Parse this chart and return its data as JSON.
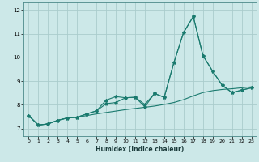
{
  "title": "",
  "xlabel": "Humidex (Indice chaleur)",
  "ylabel": "",
  "background_color": "#cce8e8",
  "grid_color": "#aacccc",
  "line_color": "#1a7a6e",
  "xlim": [
    -0.5,
    23.5
  ],
  "ylim": [
    6.7,
    12.3
  ],
  "yticks": [
    7,
    8,
    9,
    10,
    11,
    12
  ],
  "xticks": [
    0,
    1,
    2,
    3,
    4,
    5,
    6,
    7,
    8,
    9,
    10,
    11,
    12,
    13,
    14,
    15,
    16,
    17,
    18,
    19,
    20,
    21,
    22,
    23
  ],
  "line1_x": [
    0,
    1,
    2,
    3,
    4,
    5,
    6,
    7,
    8,
    9,
    10,
    11,
    12,
    13,
    14,
    15,
    16,
    17,
    18,
    19,
    20,
    21,
    22,
    23
  ],
  "line1_y": [
    7.55,
    7.15,
    7.2,
    7.35,
    7.45,
    7.48,
    7.55,
    7.62,
    7.68,
    7.74,
    7.8,
    7.85,
    7.9,
    7.95,
    8.02,
    8.1,
    8.22,
    8.38,
    8.52,
    8.6,
    8.65,
    8.68,
    8.72,
    8.76
  ],
  "line2_x": [
    0,
    1,
    2,
    3,
    4,
    5,
    6,
    7,
    8,
    9,
    10,
    11,
    12,
    13,
    14,
    15,
    16,
    17,
    18,
    19,
    20,
    21,
    22,
    23
  ],
  "line2_y": [
    7.55,
    7.15,
    7.2,
    7.35,
    7.45,
    7.48,
    7.62,
    7.75,
    8.2,
    8.35,
    8.3,
    8.32,
    7.92,
    8.48,
    8.32,
    9.78,
    11.05,
    11.72,
    10.08,
    9.42,
    8.82,
    8.52,
    8.62,
    8.72
  ],
  "line3_x": [
    0,
    1,
    2,
    3,
    4,
    5,
    6,
    7,
    8,
    9,
    10,
    11,
    12,
    13,
    14,
    15,
    16,
    17,
    18,
    19,
    20,
    21,
    22,
    23
  ],
  "line3_y": [
    7.55,
    7.15,
    7.2,
    7.35,
    7.45,
    7.48,
    7.62,
    7.75,
    8.05,
    8.1,
    8.3,
    8.32,
    8.02,
    8.48,
    8.32,
    9.78,
    11.05,
    11.72,
    10.08,
    9.42,
    8.82,
    8.52,
    8.62,
    8.72
  ]
}
